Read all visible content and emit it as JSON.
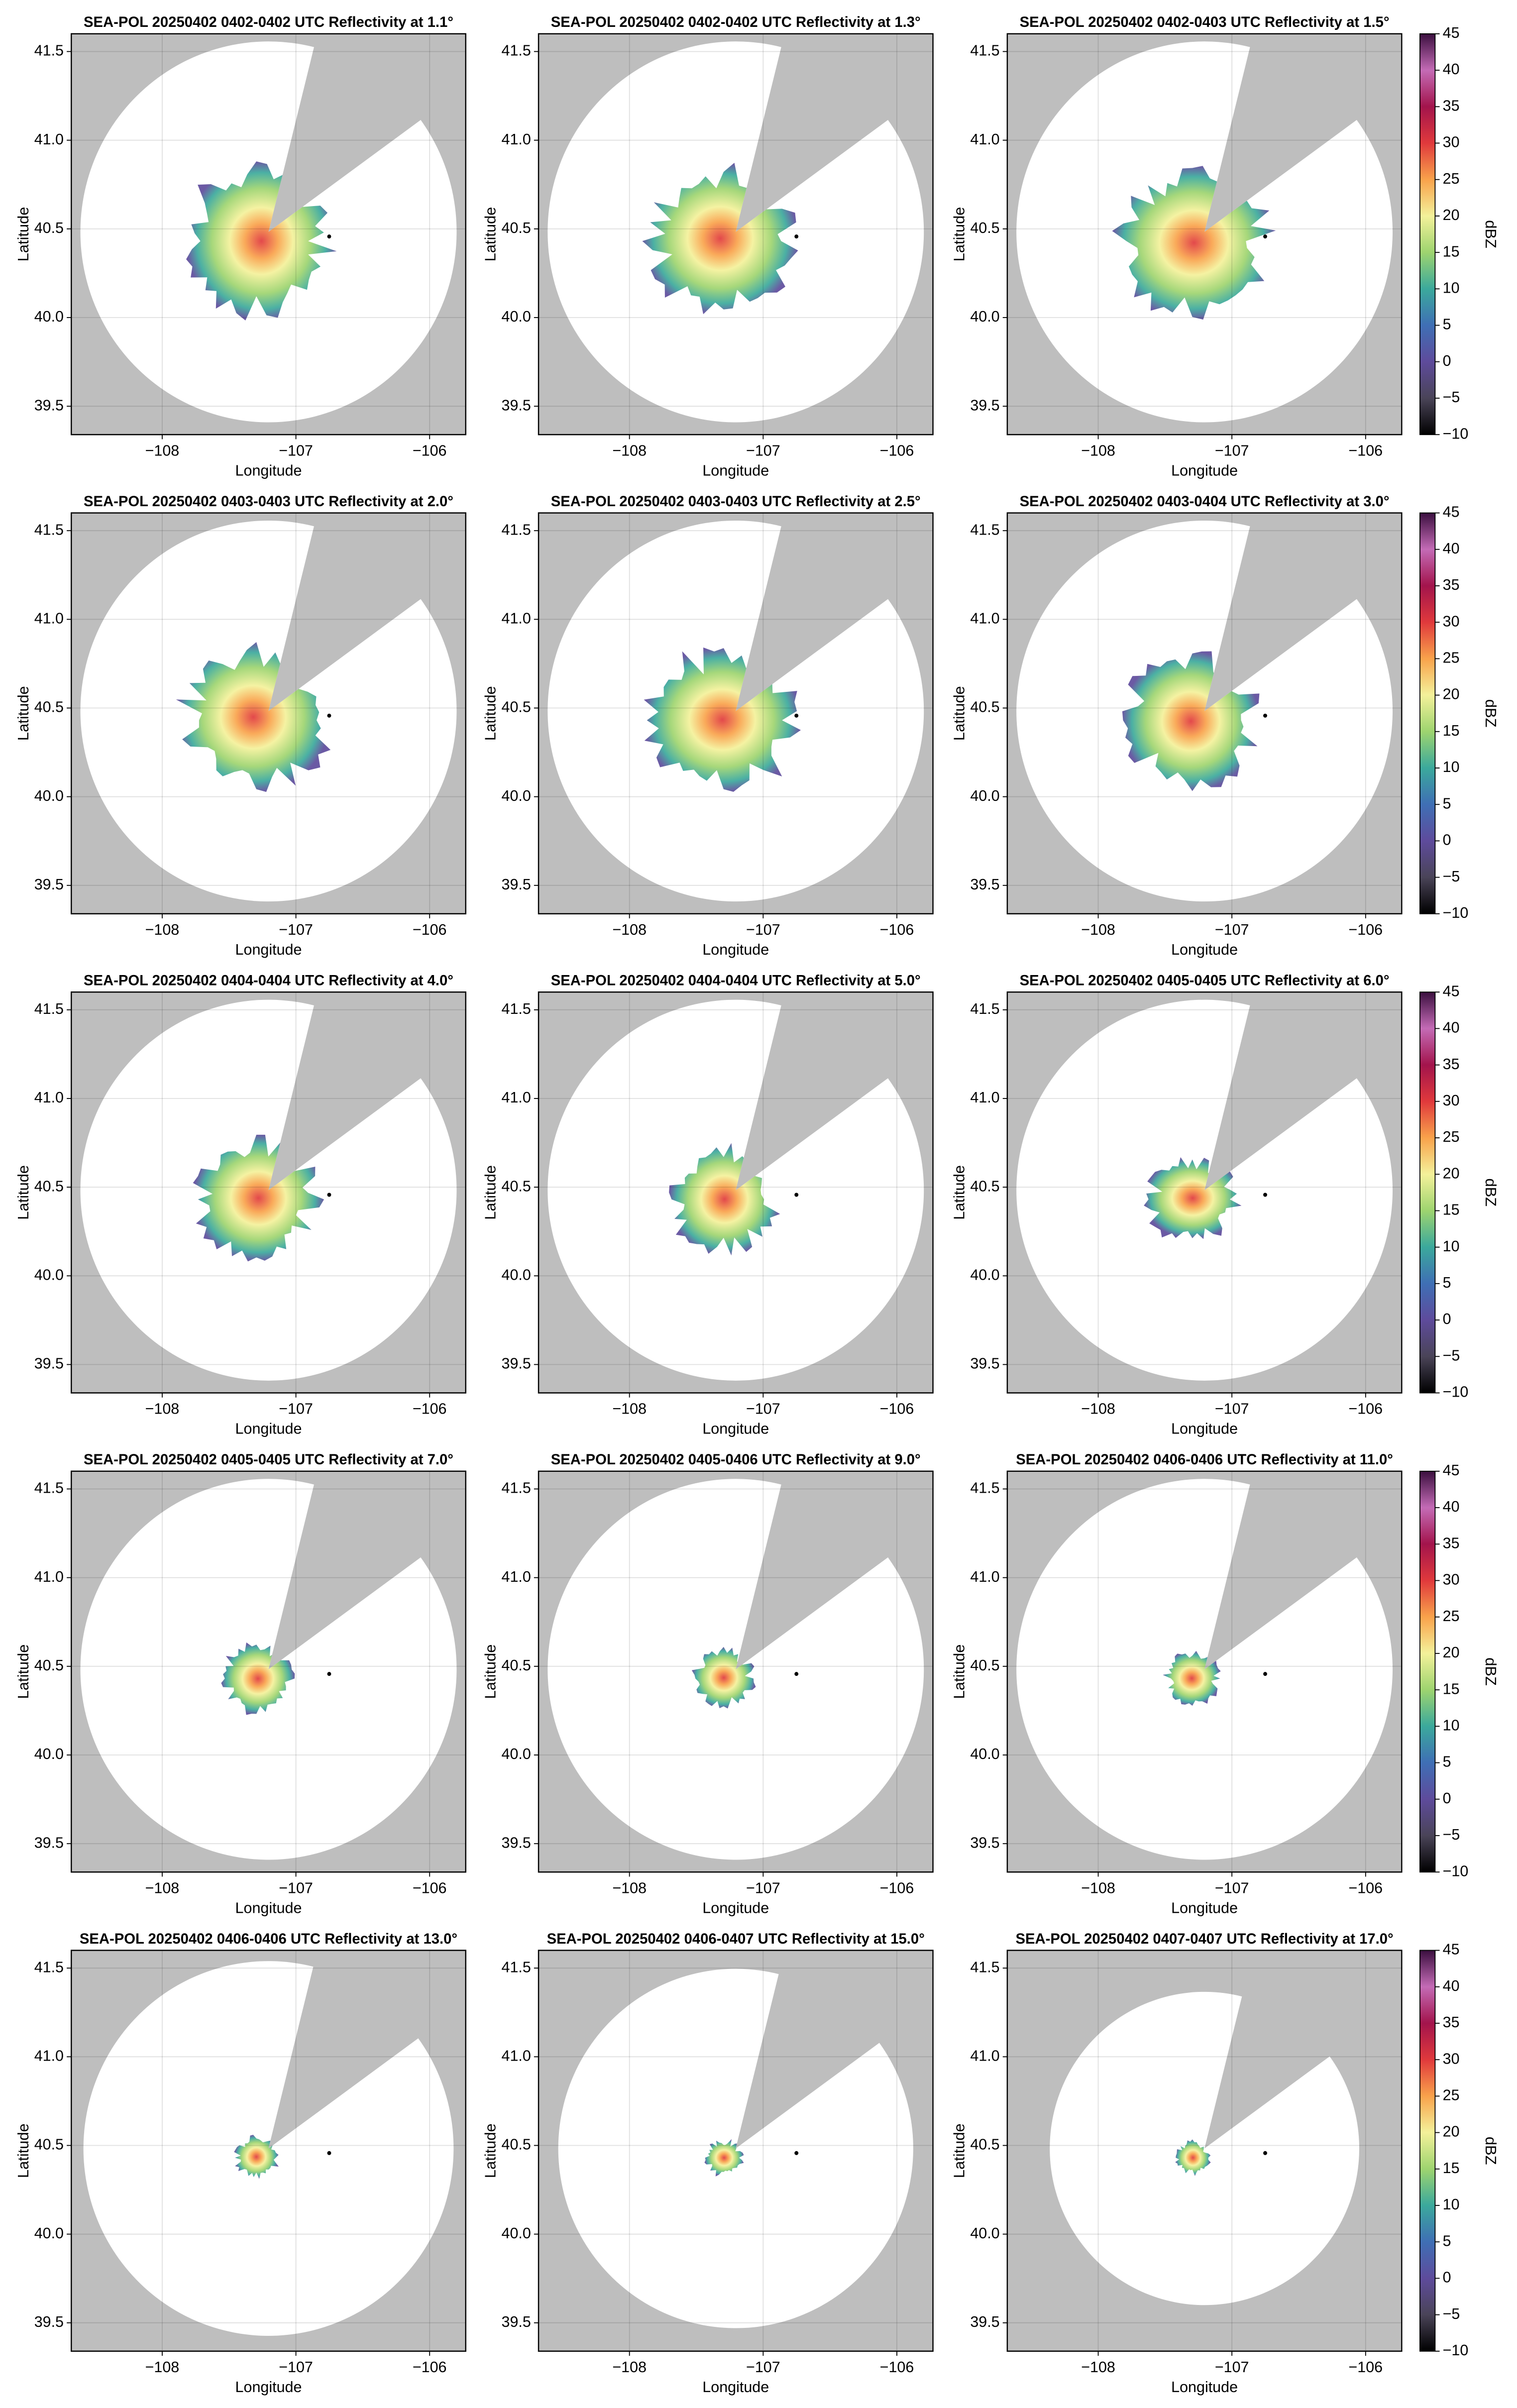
{
  "chart_data": [
    {
      "type": "radar-ppi",
      "title": "SEA-POL 20250402 0402-0402 UTC Reflectivity at 1.1°",
      "xlabel": "Longitude",
      "ylabel": "Latitude",
      "xlim": [
        -108.68,
        -105.73
      ],
      "ylim": [
        39.34,
        41.6
      ],
      "xticks": [
        {
          "value": -108,
          "label": "−108"
        },
        {
          "value": -107,
          "label": "−107"
        },
        {
          "value": -106,
          "label": "−106"
        }
      ],
      "yticks": [
        39.5,
        {
          "value": 40,
          "label": "40.0"
        },
        40.5,
        {
          "value": 41,
          "label": "41.0"
        },
        41.5
      ],
      "grid": true
    },
    {
      "type": "radar-ppi",
      "title": "SEA-POL 20250402 0402-0402 UTC Reflectivity at 1.3°",
      "xlabel": "Longitude",
      "ylabel": "Latitude",
      "xlim": [
        -108.68,
        -105.73
      ],
      "ylim": [
        39.34,
        41.6
      ],
      "xticks": [
        {
          "value": -108,
          "label": "−108"
        },
        {
          "value": -107,
          "label": "−107"
        },
        {
          "value": -106,
          "label": "−106"
        }
      ],
      "yticks": [
        39.5,
        {
          "value": 40,
          "label": "40.0"
        },
        40.5,
        {
          "value": 41,
          "label": "41.0"
        },
        41.5
      ],
      "grid": true
    },
    {
      "type": "radar-ppi",
      "title": "SEA-POL 20250402 0402-0403 UTC Reflectivity at 1.5°",
      "xlabel": "Longitude",
      "ylabel": "Latitude",
      "xlim": [
        -108.68,
        -105.73
      ],
      "ylim": [
        39.34,
        41.6
      ],
      "xticks": [
        {
          "value": -108,
          "label": "−108"
        },
        {
          "value": -107,
          "label": "−107"
        },
        {
          "value": -106,
          "label": "−106"
        }
      ],
      "yticks": [
        39.5,
        {
          "value": 40,
          "label": "40.0"
        },
        40.5,
        {
          "value": 41,
          "label": "41.0"
        },
        41.5
      ],
      "grid": true,
      "colorbar": {
        "label": "dBZ",
        "lim": [
          -10,
          45
        ],
        "ticks": [
          {
            "value": -10,
            "label": "−10"
          },
          {
            "value": -5,
            "label": "−5"
          },
          0,
          5,
          10,
          15,
          20,
          25,
          30,
          35,
          40,
          45
        ],
        "colors": [
          "#000000",
          "#4a4458",
          "#5e4b9c",
          "#3f6fb5",
          "#3ba99c",
          "#9ed46f",
          "#f4f19a",
          "#f9a24b",
          "#e0393c",
          "#a3144c",
          "#c46bb6",
          "#3b0f3f"
        ]
      }
    },
    {
      "type": "radar-ppi",
      "title": "SEA-POL 20250402 0403-0403 UTC Reflectivity at 2.0°",
      "xlabel": "Longitude",
      "ylabel": "Latitude",
      "xlim": [
        -108.68,
        -105.73
      ],
      "ylim": [
        39.34,
        41.6
      ],
      "xticks": [
        {
          "value": -108,
          "label": "−108"
        },
        {
          "value": -107,
          "label": "−107"
        },
        {
          "value": -106,
          "label": "−106"
        }
      ],
      "yticks": [
        39.5,
        {
          "value": 40,
          "label": "40.0"
        },
        40.5,
        {
          "value": 41,
          "label": "41.0"
        },
        41.5
      ],
      "grid": true
    },
    {
      "type": "radar-ppi",
      "title": "SEA-POL 20250402 0403-0403 UTC Reflectivity at 2.5°",
      "xlabel": "Longitude",
      "ylabel": "Latitude",
      "xlim": [
        -108.68,
        -105.73
      ],
      "ylim": [
        39.34,
        41.6
      ],
      "xticks": [
        {
          "value": -108,
          "label": "−108"
        },
        {
          "value": -107,
          "label": "−107"
        },
        {
          "value": -106,
          "label": "−106"
        }
      ],
      "yticks": [
        39.5,
        {
          "value": 40,
          "label": "40.0"
        },
        40.5,
        {
          "value": 41,
          "label": "41.0"
        },
        41.5
      ],
      "grid": true
    },
    {
      "type": "radar-ppi",
      "title": "SEA-POL 20250402 0403-0404 UTC Reflectivity at 3.0°",
      "xlabel": "Longitude",
      "ylabel": "Latitude",
      "xlim": [
        -108.68,
        -105.73
      ],
      "ylim": [
        39.34,
        41.6
      ],
      "xticks": [
        {
          "value": -108,
          "label": "−108"
        },
        {
          "value": -107,
          "label": "−107"
        },
        {
          "value": -106,
          "label": "−106"
        }
      ],
      "yticks": [
        39.5,
        {
          "value": 40,
          "label": "40.0"
        },
        40.5,
        {
          "value": 41,
          "label": "41.0"
        },
        41.5
      ],
      "grid": true,
      "colorbar": {
        "label": "dBZ",
        "lim": [
          -10,
          45
        ],
        "ticks": [
          {
            "value": -10,
            "label": "−10"
          },
          {
            "value": -5,
            "label": "−5"
          },
          0,
          5,
          10,
          15,
          20,
          25,
          30,
          35,
          40,
          45
        ],
        "colors": [
          "#000000",
          "#4a4458",
          "#5e4b9c",
          "#3f6fb5",
          "#3ba99c",
          "#9ed46f",
          "#f4f19a",
          "#f9a24b",
          "#e0393c",
          "#a3144c",
          "#c46bb6",
          "#3b0f3f"
        ]
      }
    },
    {
      "type": "radar-ppi",
      "title": "SEA-POL 20250402 0404-0404 UTC Reflectivity at 4.0°",
      "xlabel": "Longitude",
      "ylabel": "Latitude",
      "xlim": [
        -108.68,
        -105.73
      ],
      "ylim": [
        39.34,
        41.6
      ],
      "xticks": [
        {
          "value": -108,
          "label": "−108"
        },
        {
          "value": -107,
          "label": "−107"
        },
        {
          "value": -106,
          "label": "−106"
        }
      ],
      "yticks": [
        39.5,
        {
          "value": 40,
          "label": "40.0"
        },
        40.5,
        {
          "value": 41,
          "label": "41.0"
        },
        41.5
      ],
      "grid": true
    },
    {
      "type": "radar-ppi",
      "title": "SEA-POL 20250402 0404-0404 UTC Reflectivity at 5.0°",
      "xlabel": "Longitude",
      "ylabel": "Latitude",
      "xlim": [
        -108.68,
        -105.73
      ],
      "ylim": [
        39.34,
        41.6
      ],
      "xticks": [
        {
          "value": -108,
          "label": "−108"
        },
        {
          "value": -107,
          "label": "−107"
        },
        {
          "value": -106,
          "label": "−106"
        }
      ],
      "yticks": [
        39.5,
        {
          "value": 40,
          "label": "40.0"
        },
        40.5,
        {
          "value": 41,
          "label": "41.0"
        },
        41.5
      ],
      "grid": true
    },
    {
      "type": "radar-ppi",
      "title": "SEA-POL 20250402 0405-0405 UTC Reflectivity at 6.0°",
      "xlabel": "Longitude",
      "ylabel": "Latitude",
      "xlim": [
        -108.68,
        -105.73
      ],
      "ylim": [
        39.34,
        41.6
      ],
      "xticks": [
        {
          "value": -108,
          "label": "−108"
        },
        {
          "value": -107,
          "label": "−107"
        },
        {
          "value": -106,
          "label": "−106"
        }
      ],
      "yticks": [
        39.5,
        {
          "value": 40,
          "label": "40.0"
        },
        40.5,
        {
          "value": 41,
          "label": "41.0"
        },
        41.5
      ],
      "grid": true,
      "colorbar": {
        "label": "dBZ",
        "lim": [
          -10,
          45
        ],
        "ticks": [
          {
            "value": -10,
            "label": "−10"
          },
          {
            "value": -5,
            "label": "−5"
          },
          0,
          5,
          10,
          15,
          20,
          25,
          30,
          35,
          40,
          45
        ],
        "colors": [
          "#000000",
          "#4a4458",
          "#5e4b9c",
          "#3f6fb5",
          "#3ba99c",
          "#9ed46f",
          "#f4f19a",
          "#f9a24b",
          "#e0393c",
          "#a3144c",
          "#c46bb6",
          "#3b0f3f"
        ]
      }
    },
    {
      "type": "radar-ppi",
      "title": "SEA-POL 20250402 0405-0405 UTC Reflectivity at 7.0°",
      "xlabel": "Longitude",
      "ylabel": "Latitude",
      "xlim": [
        -108.68,
        -105.73
      ],
      "ylim": [
        39.34,
        41.6
      ],
      "xticks": [
        {
          "value": -108,
          "label": "−108"
        },
        {
          "value": -107,
          "label": "−107"
        },
        {
          "value": -106,
          "label": "−106"
        }
      ],
      "yticks": [
        39.5,
        {
          "value": 40,
          "label": "40.0"
        },
        40.5,
        {
          "value": 41,
          "label": "41.0"
        },
        41.5
      ],
      "grid": true
    },
    {
      "type": "radar-ppi",
      "title": "SEA-POL 20250402 0405-0406 UTC Reflectivity at 9.0°",
      "xlabel": "Longitude",
      "ylabel": "Latitude",
      "xlim": [
        -108.68,
        -105.73
      ],
      "ylim": [
        39.34,
        41.6
      ],
      "xticks": [
        {
          "value": -108,
          "label": "−108"
        },
        {
          "value": -107,
          "label": "−107"
        },
        {
          "value": -106,
          "label": "−106"
        }
      ],
      "yticks": [
        39.5,
        {
          "value": 40,
          "label": "40.0"
        },
        40.5,
        {
          "value": 41,
          "label": "41.0"
        },
        41.5
      ],
      "grid": true
    },
    {
      "type": "radar-ppi",
      "title": "SEA-POL 20250402 0406-0406 UTC Reflectivity at 11.0°",
      "xlabel": "Longitude",
      "ylabel": "Latitude",
      "xlim": [
        -108.68,
        -105.73
      ],
      "ylim": [
        39.34,
        41.6
      ],
      "xticks": [
        {
          "value": -108,
          "label": "−108"
        },
        {
          "value": -107,
          "label": "−107"
        },
        {
          "value": -106,
          "label": "−106"
        }
      ],
      "yticks": [
        39.5,
        {
          "value": 40,
          "label": "40.0"
        },
        40.5,
        {
          "value": 41,
          "label": "41.0"
        },
        41.5
      ],
      "grid": true,
      "colorbar": {
        "label": "dBZ",
        "lim": [
          -10,
          45
        ],
        "ticks": [
          {
            "value": -10,
            "label": "−10"
          },
          {
            "value": -5,
            "label": "−5"
          },
          0,
          5,
          10,
          15,
          20,
          25,
          30,
          35,
          40,
          45
        ],
        "colors": [
          "#000000",
          "#4a4458",
          "#5e4b9c",
          "#3f6fb5",
          "#3ba99c",
          "#9ed46f",
          "#f4f19a",
          "#f9a24b",
          "#e0393c",
          "#a3144c",
          "#c46bb6",
          "#3b0f3f"
        ]
      }
    },
    {
      "type": "radar-ppi",
      "title": "SEA-POL 20250402 0406-0406 UTC Reflectivity at 13.0°",
      "xlabel": "Longitude",
      "ylabel": "Latitude",
      "xlim": [
        -108.68,
        -105.73
      ],
      "ylim": [
        39.34,
        41.6
      ],
      "xticks": [
        {
          "value": -108,
          "label": "−108"
        },
        {
          "value": -107,
          "label": "−107"
        },
        {
          "value": -106,
          "label": "−106"
        }
      ],
      "yticks": [
        39.5,
        {
          "value": 40,
          "label": "40.0"
        },
        40.5,
        {
          "value": 41,
          "label": "41.0"
        },
        41.5
      ],
      "grid": true
    },
    {
      "type": "radar-ppi",
      "title": "SEA-POL 20250402 0406-0407 UTC Reflectivity at 15.0°",
      "xlabel": "Longitude",
      "ylabel": "Latitude",
      "xlim": [
        -108.68,
        -105.73
      ],
      "ylim": [
        39.34,
        41.6
      ],
      "xticks": [
        {
          "value": -108,
          "label": "−108"
        },
        {
          "value": -107,
          "label": "−107"
        },
        {
          "value": -106,
          "label": "−106"
        }
      ],
      "yticks": [
        39.5,
        {
          "value": 40,
          "label": "40.0"
        },
        40.5,
        {
          "value": 41,
          "label": "41.0"
        },
        41.5
      ],
      "grid": true
    },
    {
      "type": "radar-ppi",
      "title": "SEA-POL 20250402 0407-0407 UTC Reflectivity at 17.0°",
      "xlabel": "Longitude",
      "ylabel": "Latitude",
      "xlim": [
        -108.68,
        -105.73
      ],
      "ylim": [
        39.34,
        41.6
      ],
      "xticks": [
        {
          "value": -108,
          "label": "−108"
        },
        {
          "value": -107,
          "label": "−107"
        },
        {
          "value": -106,
          "label": "−106"
        }
      ],
      "yticks": [
        39.5,
        {
          "value": 40,
          "label": "40.0"
        },
        40.5,
        {
          "value": 41,
          "label": "41.0"
        },
        41.5
      ],
      "grid": true,
      "colorbar": {
        "label": "dBZ",
        "lim": [
          -10,
          45
        ],
        "ticks": [
          {
            "value": -10,
            "label": "−10"
          },
          {
            "value": -5,
            "label": "−5"
          },
          0,
          5,
          10,
          15,
          20,
          25,
          30,
          35,
          40,
          45
        ],
        "colors": [
          "#000000",
          "#4a4458",
          "#5e4b9c",
          "#3f6fb5",
          "#3ba99c",
          "#9ed46f",
          "#f4f19a",
          "#f9a24b",
          "#e0393c",
          "#a3144c",
          "#c46bb6",
          "#3b0f3f"
        ]
      }
    }
  ]
}
